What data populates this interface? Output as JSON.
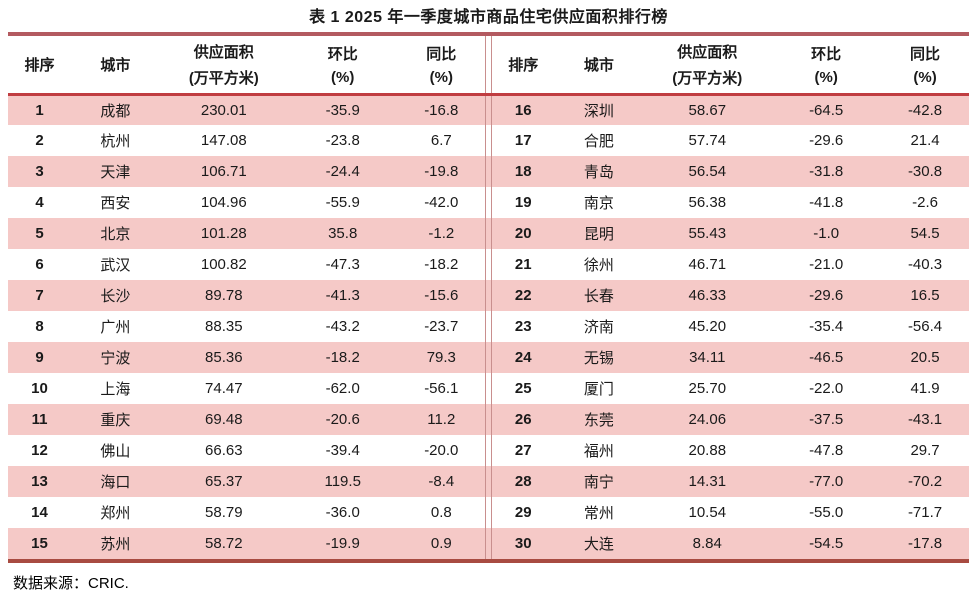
{
  "title": "表 1 2025 年一季度城市商品住宅供应面积排行榜",
  "source_note": "数据来源：CRIC.",
  "columns": {
    "rank": "排序",
    "city": "城市",
    "supply_line1": "供应面积",
    "supply_line2": "(万平方米)",
    "mom_line1": "环比",
    "mom_line2": "(%)",
    "yoy_line1": "同比",
    "yoy_line2": "(%)"
  },
  "colors": {
    "stripe_pink": "#f5c9c7",
    "top_rule": "#b35a60",
    "header_rule": "#c03d41",
    "bottom_rule": "#a84b41",
    "divider": "#c98f8e"
  },
  "left_rows": [
    {
      "rank": "1",
      "city": "成都",
      "supply": "230.01",
      "mom": "-35.9",
      "yoy": "-16.8"
    },
    {
      "rank": "2",
      "city": "杭州",
      "supply": "147.08",
      "mom": "-23.8",
      "yoy": "6.7"
    },
    {
      "rank": "3",
      "city": "天津",
      "supply": "106.71",
      "mom": "-24.4",
      "yoy": "-19.8"
    },
    {
      "rank": "4",
      "city": "西安",
      "supply": "104.96",
      "mom": "-55.9",
      "yoy": "-42.0"
    },
    {
      "rank": "5",
      "city": "北京",
      "supply": "101.28",
      "mom": "35.8",
      "yoy": "-1.2"
    },
    {
      "rank": "6",
      "city": "武汉",
      "supply": "100.82",
      "mom": "-47.3",
      "yoy": "-18.2"
    },
    {
      "rank": "7",
      "city": "长沙",
      "supply": "89.78",
      "mom": "-41.3",
      "yoy": "-15.6"
    },
    {
      "rank": "8",
      "city": "广州",
      "supply": "88.35",
      "mom": "-43.2",
      "yoy": "-23.7"
    },
    {
      "rank": "9",
      "city": "宁波",
      "supply": "85.36",
      "mom": "-18.2",
      "yoy": "79.3"
    },
    {
      "rank": "10",
      "city": "上海",
      "supply": "74.47",
      "mom": "-62.0",
      "yoy": "-56.1"
    },
    {
      "rank": "11",
      "city": "重庆",
      "supply": "69.48",
      "mom": "-20.6",
      "yoy": "11.2"
    },
    {
      "rank": "12",
      "city": "佛山",
      "supply": "66.63",
      "mom": "-39.4",
      "yoy": "-20.0"
    },
    {
      "rank": "13",
      "city": "海口",
      "supply": "65.37",
      "mom": "119.5",
      "yoy": "-8.4"
    },
    {
      "rank": "14",
      "city": "郑州",
      "supply": "58.79",
      "mom": "-36.0",
      "yoy": "0.8"
    },
    {
      "rank": "15",
      "city": "苏州",
      "supply": "58.72",
      "mom": "-19.9",
      "yoy": "0.9"
    }
  ],
  "right_rows": [
    {
      "rank": "16",
      "city": "深圳",
      "supply": "58.67",
      "mom": "-64.5",
      "yoy": "-42.8"
    },
    {
      "rank": "17",
      "city": "合肥",
      "supply": "57.74",
      "mom": "-29.6",
      "yoy": "21.4"
    },
    {
      "rank": "18",
      "city": "青岛",
      "supply": "56.54",
      "mom": "-31.8",
      "yoy": "-30.8"
    },
    {
      "rank": "19",
      "city": "南京",
      "supply": "56.38",
      "mom": "-41.8",
      "yoy": "-2.6"
    },
    {
      "rank": "20",
      "city": "昆明",
      "supply": "55.43",
      "mom": "-1.0",
      "yoy": "54.5"
    },
    {
      "rank": "21",
      "city": "徐州",
      "supply": "46.71",
      "mom": "-21.0",
      "yoy": "-40.3"
    },
    {
      "rank": "22",
      "city": "长春",
      "supply": "46.33",
      "mom": "-29.6",
      "yoy": "16.5"
    },
    {
      "rank": "23",
      "city": "济南",
      "supply": "45.20",
      "mom": "-35.4",
      "yoy": "-56.4"
    },
    {
      "rank": "24",
      "city": "无锡",
      "supply": "34.11",
      "mom": "-46.5",
      "yoy": "20.5"
    },
    {
      "rank": "25",
      "city": "厦门",
      "supply": "25.70",
      "mom": "-22.0",
      "yoy": "41.9"
    },
    {
      "rank": "26",
      "city": "东莞",
      "supply": "24.06",
      "mom": "-37.5",
      "yoy": "-43.1"
    },
    {
      "rank": "27",
      "city": "福州",
      "supply": "20.88",
      "mom": "-47.8",
      "yoy": "29.7"
    },
    {
      "rank": "28",
      "city": "南宁",
      "supply": "14.31",
      "mom": "-77.0",
      "yoy": "-70.2"
    },
    {
      "rank": "29",
      "city": "常州",
      "supply": "10.54",
      "mom": "-55.0",
      "yoy": "-71.7"
    },
    {
      "rank": "30",
      "city": "大连",
      "supply": "8.84",
      "mom": "-54.5",
      "yoy": "-17.8"
    }
  ]
}
